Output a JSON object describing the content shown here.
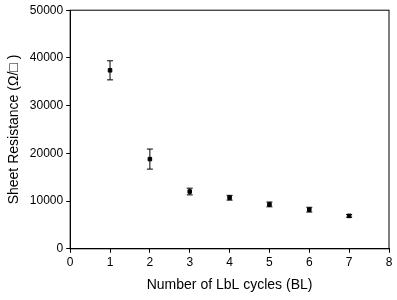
{
  "chart_data": {
    "type": "scatter",
    "x_label": "Number of LbL cycles (BL)",
    "y_label": "Sheet Resistance (Ω/□ )",
    "x": [
      1,
      2,
      3,
      4,
      5,
      6,
      7
    ],
    "values": [
      37400,
      18800,
      12000,
      10700,
      9300,
      8200,
      6900
    ],
    "errors": [
      2000,
      2100,
      700,
      500,
      500,
      500,
      300
    ],
    "color": "#000000",
    "marker": "square",
    "xlim": [
      0,
      8
    ],
    "xticks": [
      0,
      1,
      2,
      3,
      4,
      5,
      6,
      7,
      8
    ],
    "ylim": [
      0,
      50000
    ],
    "yticks": [
      0,
      10000,
      20000,
      30000,
      40000,
      50000
    ],
    "grid": false
  }
}
